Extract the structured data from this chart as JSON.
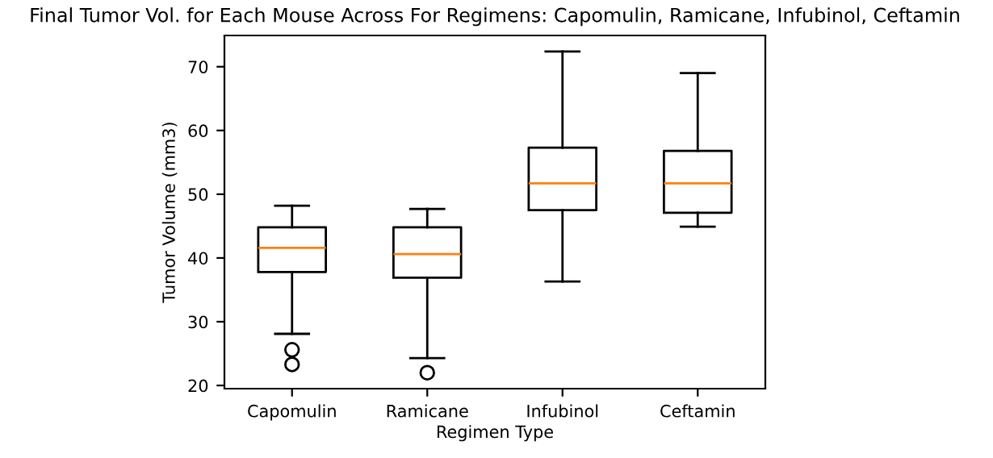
{
  "chart_data": {
    "type": "box",
    "title": "Final Tumor Vol. for Each Mouse Across For Regimens: Capomulin, Ramicane, Infubinol, Ceftamin",
    "xlabel": "Regimen Type",
    "ylabel": "Tumor Volume (mm3)",
    "categories": [
      "Capomulin",
      "Ramicane",
      "Infubinol",
      "Ceftamin"
    ],
    "boxes": [
      {
        "low": 28.1,
        "q1": 37.8,
        "median": 41.6,
        "q3": 44.8,
        "high": 48.2,
        "outliers": [
          25.6,
          23.3
        ]
      },
      {
        "low": 24.3,
        "q1": 36.9,
        "median": 40.6,
        "q3": 44.8,
        "high": 47.7,
        "outliers": [
          22.0
        ]
      },
      {
        "low": 36.3,
        "q1": 47.5,
        "median": 51.7,
        "q3": 57.3,
        "high": 72.4
      },
      {
        "low": 44.9,
        "q1": 47.1,
        "median": 51.7,
        "q3": 56.8,
        "high": 69.0
      }
    ],
    "color": "#000000",
    "ylim": [
      19.5,
      74.9
    ],
    "yticks": [
      20,
      30,
      40,
      50,
      60,
      70
    ],
    "grid": false,
    "legend": false
  }
}
